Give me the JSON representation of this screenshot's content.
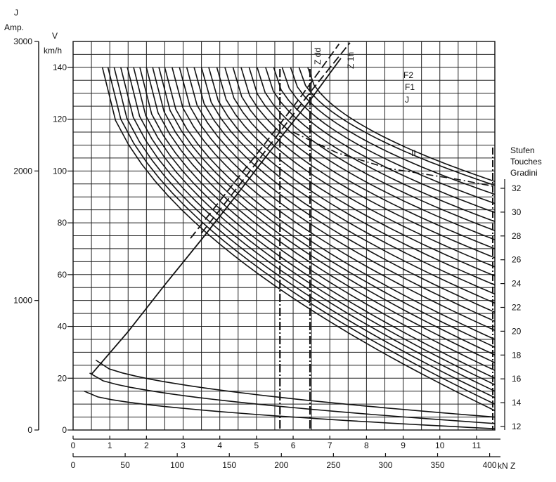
{
  "chart_data": {
    "type": "line",
    "left_axis_current": {
      "unit_line1": "J",
      "unit_line2": "Amp.",
      "ticks": [
        0,
        1000,
        2000,
        3000
      ],
      "range": [
        0,
        3000
      ]
    },
    "left_axis_speed": {
      "unit_line1": "V",
      "unit_line2": "km/h",
      "ticks": [
        0,
        20,
        40,
        60,
        80,
        100,
        120,
        140
      ],
      "range": [
        0,
        140
      ]
    },
    "bottom_axis_upper": {
      "ticks": [
        0,
        1,
        2,
        3,
        4,
        5,
        6,
        7,
        8,
        9,
        10,
        11
      ],
      "range": [
        0,
        11.5
      ]
    },
    "bottom_axis_lower": {
      "unit": "kN Z",
      "ticks": [
        0,
        50,
        100,
        150,
        200,
        250,
        300,
        350,
        400
      ],
      "range": [
        0,
        405
      ]
    },
    "right_axis_notches": {
      "title_lines": [
        "Stufen",
        "Touches",
        "Gradini"
      ],
      "ticks": [
        12,
        14,
        16,
        18,
        20,
        22,
        24,
        26,
        28,
        30,
        32
      ]
    },
    "vertical_limits": [
      {
        "label": "Z dd",
        "x": 5.64
      },
      {
        "label": "Z 1h",
        "x": 6.46
      }
    ],
    "curve_labels": [
      "F2",
      "F1",
      "J",
      "II"
    ],
    "notch_curve_count": 32,
    "notch_endpoints": {
      "x_start": [
        0.3,
        0.45,
        0.62,
        0.8,
        0.95,
        1.12,
        1.3,
        1.48,
        1.65,
        1.82,
        2.0,
        2.17,
        2.34,
        2.5,
        2.7,
        2.9,
        3.1,
        3.3,
        3.5,
        3.7,
        3.92,
        4.14,
        4.36,
        4.58,
        4.8,
        5.02,
        5.25,
        5.47,
        5.7,
        5.93,
        6.16,
        6.4
      ],
      "speed_start": [
        15,
        22,
        27,
        140,
        140,
        140,
        140,
        140,
        140,
        140,
        140,
        140,
        140,
        140,
        140,
        140,
        140,
        140,
        140,
        140,
        140,
        140,
        140,
        140,
        140,
        140,
        140,
        140,
        140,
        140,
        140,
        140
      ],
      "speed_end_at_right": [
        0.5,
        2.5,
        5,
        7.5,
        10,
        12.5,
        15,
        17.5,
        20,
        23,
        26,
        29,
        32,
        35,
        38.5,
        42,
        45.5,
        49,
        52.5,
        56,
        59.5,
        63,
        66.5,
        70,
        73.5,
        77,
        80.5,
        84,
        87.5,
        91,
        94.5,
        96
      ]
    },
    "envelope_II": {
      "x": [
        6.0,
        7.2,
        8.6,
        10.4,
        11.5
      ],
      "speed": [
        115,
        107,
        101,
        97,
        94
      ]
    },
    "current_J": {
      "x": [
        0.5,
        1.5,
        2.5,
        3.5,
        4.5,
        5.5,
        6.5,
        7.3
      ],
      "current": [
        430,
        760,
        1120,
        1470,
        1830,
        2200,
        2560,
        2870
      ]
    },
    "force_F1": {
      "x": [
        3.5,
        4.5,
        5.5,
        6.5,
        7.55
      ],
      "current": [
        1520,
        1880,
        2250,
        2620,
        2990
      ]
    },
    "force_F2": {
      "x": [
        3.2,
        4.2,
        5.2,
        6.2,
        7.25
      ],
      "current": [
        1480,
        1840,
        2200,
        2570,
        2980
      ]
    }
  }
}
